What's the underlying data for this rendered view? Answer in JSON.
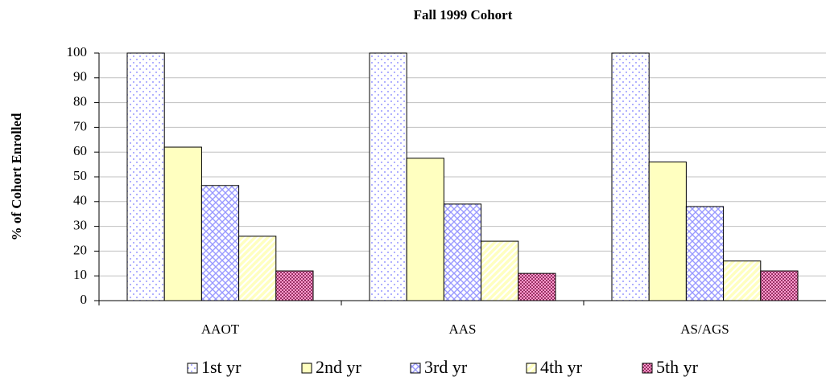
{
  "chart_data": {
    "type": "bar",
    "title": "Fall 1999 Cohort",
    "y_label": "% of Cohort Enrolled",
    "categories": [
      "AAOT",
      "AAS",
      "AS/AGS"
    ],
    "series": [
      {
        "name": "1st yr",
        "color": "#ffffff",
        "pattern": "dots",
        "pattern_color": "#9999ff",
        "values": [
          100,
          100,
          100
        ]
      },
      {
        "name": "2nd yr",
        "color": "#ffffc0",
        "pattern": "solid",
        "pattern_color": "#ffffc0",
        "values": [
          62,
          57.5,
          56
        ]
      },
      {
        "name": "3rd yr",
        "color": "#ffffff",
        "pattern": "crosshatch",
        "pattern_color": "#9999ff",
        "values": [
          46.5,
          39,
          38
        ]
      },
      {
        "name": "4th yr",
        "color": "#ffffc0",
        "pattern": "diagonal",
        "pattern_color": "#ffffff",
        "values": [
          26,
          24,
          16
        ]
      },
      {
        "name": "5th yr",
        "color": "#993366",
        "pattern": "checker",
        "pattern_color": "#ff99cc",
        "values": [
          12,
          11,
          12
        ]
      }
    ],
    "ylim": [
      0,
      100
    ],
    "yticks": [
      0,
      10,
      20,
      30,
      40,
      50,
      60,
      70,
      80,
      90,
      100
    ],
    "grid": true,
    "legend": "bottom"
  }
}
